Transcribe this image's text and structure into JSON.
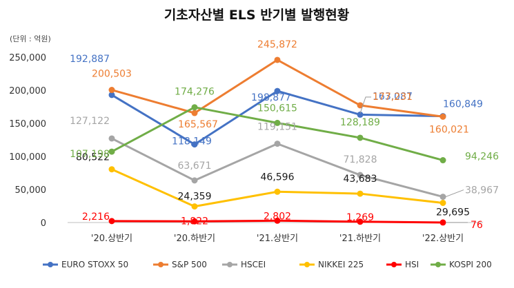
{
  "chart_data": {
    "type": "line",
    "title": "기초자산별 ELS 반기별 발행현황",
    "unit_label": "(단위 : 억원)",
    "categories": [
      "'20.상반기",
      "'20.하반기",
      "'21.상반기",
      "'21.하반기",
      "'22.상반기"
    ],
    "ylim": [
      0,
      250000
    ],
    "yticks": [
      "0",
      "50,000",
      "100,000",
      "150,000",
      "200,000",
      "250,000"
    ],
    "legend_position": "bottom",
    "grid": false,
    "series": [
      {
        "name": "EURO STOXX 50",
        "color": "#4472C4",
        "values": [
          192887,
          118149,
          198877,
          163087,
          160849
        ],
        "labels": [
          "192,887",
          "118,149",
          "198,877",
          "163,087",
          "160,849"
        ]
      },
      {
        "name": "S&P 500",
        "color": "#ED7D31",
        "values": [
          200503,
          165567,
          245872,
          177231,
          160021
        ],
        "labels": [
          "200,503",
          "165,567",
          "245,872",
          "177,231",
          "160,021"
        ]
      },
      {
        "name": "HSCEI",
        "color": "#A5A5A5",
        "values": [
          127122,
          63671,
          119151,
          71828,
          38967
        ],
        "labels": [
          "127,122",
          "63,671",
          "119,151",
          "71,828",
          "38,967"
        ]
      },
      {
        "name": "NIKKEI 225",
        "color": "#FFC000",
        "values": [
          80522,
          24359,
          46596,
          43683,
          29695
        ],
        "labels": [
          "80,522",
          "24,359",
          "46,596",
          "43,683",
          "29,695"
        ]
      },
      {
        "name": "HSI",
        "color": "#FF0000",
        "values": [
          2216,
          1822,
          2802,
          1269,
          76
        ],
        "labels": [
          "2,216",
          "1,822",
          "2,802",
          "1,269",
          "76"
        ]
      },
      {
        "name": "KOSPI 200",
        "color": "#70AD47",
        "values": [
          107198,
          174276,
          150615,
          128189,
          94246
        ],
        "labels": [
          "107,198",
          "174,276",
          "150,615",
          "128,189",
          "94,246"
        ]
      }
    ]
  }
}
